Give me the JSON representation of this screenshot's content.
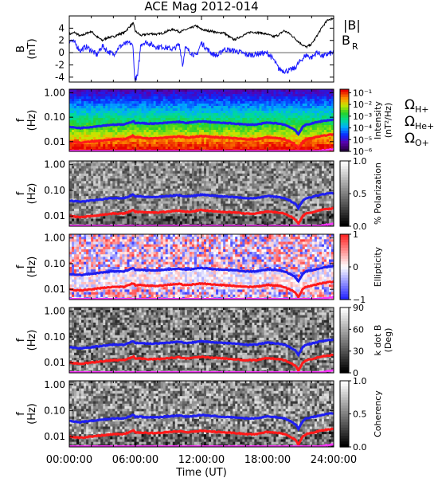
{
  "title": "ACE Mag 2012-014",
  "x_axis": {
    "label": "Time (UT)",
    "tick_labels": [
      "00:00:00",
      "06:00:00",
      "12:00:00",
      "18:00:00",
      "24:00:00"
    ],
    "range_hours": [
      0,
      24
    ]
  },
  "colors": {
    "B_total": "#000000",
    "B_R": "#1f1fff",
    "H_plus": "#1e1ef0",
    "He_plus": "#ff1a1a",
    "O_plus": "#ff33ff"
  },
  "chart_data": [
    {
      "type": "line",
      "panel": "field",
      "ylabel_line1": "B",
      "ylabel_line2": "(nT)",
      "ylim": [
        -4.8,
        6
      ],
      "y_ticks": [
        -4,
        -2,
        0,
        2,
        4
      ],
      "y_tick_labels": [
        "-4",
        "-2",
        "0",
        "2",
        "4"
      ],
      "series": [
        {
          "name": "|B|",
          "x": [
            0,
            0.5,
            1,
            1.5,
            2,
            2.5,
            3,
            3.5,
            4,
            4.5,
            5,
            5.5,
            5.8,
            6,
            6.5,
            7,
            7.5,
            8,
            8.5,
            9,
            9.5,
            10,
            10.5,
            11,
            11.5,
            12,
            12.5,
            13,
            13.5,
            14,
            14.5,
            15,
            15.5,
            16,
            16.5,
            17,
            17.5,
            18,
            18.5,
            19,
            19.5,
            20,
            20.5,
            21,
            21.5,
            22,
            22.5,
            23,
            23.5,
            24
          ],
          "y": [
            3.0,
            3.3,
            2.7,
            3.1,
            3.5,
            2.6,
            2.0,
            2.5,
            2.6,
            3.0,
            3.3,
            4.3,
            4.8,
            3.5,
            2.8,
            3.0,
            3.1,
            3.0,
            3.2,
            3.6,
            3.8,
            3.4,
            3.7,
            4.0,
            4.4,
            3.8,
            3.6,
            3.5,
            3.2,
            3.3,
            2.6,
            2.1,
            2.6,
            3.0,
            3.4,
            3.3,
            3.2,
            3.0,
            2.6,
            2.9,
            3.6,
            3.1,
            2.3,
            1.5,
            0.9,
            1.4,
            2.8,
            4.3,
            5.4,
            5.6
          ]
        },
        {
          "name": "B",
          "name_subscript": "R",
          "x": [
            0,
            0.5,
            1,
            1.5,
            2,
            2.5,
            3,
            3.5,
            4,
            4.5,
            5,
            5.5,
            5.8,
            5.9,
            6,
            6.2,
            6.5,
            7,
            7.5,
            8,
            8.5,
            9,
            9.5,
            10,
            10.3,
            10.5,
            11,
            11.5,
            12,
            12.5,
            13,
            13.5,
            14,
            14.5,
            15,
            15.5,
            16,
            16.5,
            17,
            17.5,
            18,
            18.5,
            19,
            19.5,
            20,
            20.5,
            21,
            21.5,
            22,
            22.5,
            23,
            23.5,
            24
          ],
          "y": [
            2.1,
            1.6,
            0.3,
            1.0,
            0.4,
            -0.4,
            1.1,
            0.2,
            -0.3,
            0.9,
            1.4,
            1.6,
            1.0,
            -3.5,
            -4.3,
            -3.8,
            1.5,
            1.7,
            1.3,
            0.9,
            1.0,
            0.7,
            0.6,
            1.4,
            -2.2,
            0.8,
            0.1,
            -0.6,
            1.6,
            0.6,
            -0.2,
            -0.5,
            0.6,
            0.4,
            0.3,
            0.1,
            -0.3,
            -0.4,
            -0.2,
            -0.1,
            -0.1,
            -1.0,
            -2.6,
            -3.0,
            -2.9,
            -2.5,
            -1.3,
            -0.4,
            -0.8,
            0.1,
            -0.6,
            -0.2,
            0.0
          ]
        }
      ]
    },
    {
      "type": "heatmap",
      "panel": "intensity",
      "ylabel_line1": "f",
      "ylabel_line2": "(Hz)",
      "y_scale": "log",
      "ylim": [
        0.004,
        1.4
      ],
      "y_ticks": [
        1,
        0.1,
        0.01
      ],
      "y_tick_labels": [
        "1.00",
        "0.10",
        "0.01"
      ],
      "colorbar": {
        "label_line1": "Intensity",
        "label_line2": "(nT²/Hz)",
        "scale": "log",
        "range": [
          1e-06,
          0.2
        ],
        "tick_values": [
          0.1,
          0.01,
          0.001,
          0.0001,
          1e-05,
          1e-06
        ],
        "tick_labels": [
          "10⁻¹",
          "10⁻²",
          "10⁻³",
          "10⁻⁴",
          "10⁻⁵",
          "10⁻⁶"
        ]
      }
    },
    {
      "type": "heatmap",
      "panel": "polarization",
      "ylabel_line1": "f",
      "ylabel_line2": "(Hz)",
      "y_scale": "log",
      "ylim": [
        0.004,
        1.4
      ],
      "y_ticks": [
        1,
        0.1,
        0.01
      ],
      "y_tick_labels": [
        "1.00",
        "0.10",
        "0.01"
      ],
      "colorbar": {
        "label_line1": "% Polarization",
        "label_line2": "",
        "scale": "linear",
        "range": [
          0,
          1
        ],
        "tick_values": [
          1,
          0.5,
          0
        ],
        "tick_labels": [
          "1.0",
          "0.5",
          "0.0"
        ]
      }
    },
    {
      "type": "heatmap",
      "panel": "ellipticity",
      "ylabel_line1": "f",
      "ylabel_line2": "(Hz)",
      "y_scale": "log",
      "ylim": [
        0.004,
        1.4
      ],
      "y_ticks": [
        1,
        0.1,
        0.01
      ],
      "y_tick_labels": [
        "1.00",
        "0.10",
        "0.01"
      ],
      "colorbar": {
        "label_line1": "Ellipticity",
        "label_line2": "",
        "scale": "linear",
        "range": [
          -1,
          1
        ],
        "tick_values": [
          1,
          0,
          -1
        ],
        "tick_labels": [
          "1",
          "0",
          "−1"
        ]
      }
    },
    {
      "type": "heatmap",
      "panel": "k_dot_b",
      "ylabel_line1": "f",
      "ylabel_line2": "(Hz)",
      "y_scale": "log",
      "ylim": [
        0.004,
        1.4
      ],
      "y_ticks": [
        1,
        0.1,
        0.01
      ],
      "y_tick_labels": [
        "1.00",
        "0.10",
        "0.01"
      ],
      "colorbar": {
        "label_line1": "k dot B",
        "label_line2": "(Deg)",
        "scale": "linear",
        "range": [
          0,
          90
        ],
        "tick_values": [
          90,
          60,
          30,
          0
        ],
        "tick_labels": [
          "90",
          "60",
          "30",
          "0"
        ]
      }
    },
    {
      "type": "heatmap",
      "panel": "coherency",
      "ylabel_line1": "f",
      "ylabel_line2": "(Hz)",
      "y_scale": "log",
      "ylim": [
        0.004,
        1.4
      ],
      "y_ticks": [
        1,
        0.1,
        0.01
      ],
      "y_tick_labels": [
        "1.00",
        "0.10",
        "0.01"
      ],
      "colorbar": {
        "label_line1": "Coherency",
        "label_line2": "",
        "scale": "linear",
        "range": [
          0,
          1
        ],
        "tick_values": [
          1,
          0.5,
          0
        ],
        "tick_labels": [
          "1.0",
          "0.5",
          "0.0"
        ]
      }
    }
  ],
  "gyrofrequency_legend": [
    {
      "symbol": "Ω",
      "sub": "H+",
      "color": "#1e1ef0"
    },
    {
      "symbol": "Ω",
      "sub": "He+",
      "color": "#ff1a1a"
    },
    {
      "symbol": "Ω",
      "sub": "O+",
      "color": "#ff33ff"
    }
  ],
  "gyrofrequency_hz": {
    "x": [
      0,
      1,
      2,
      3,
      4,
      5,
      5.5,
      5.8,
      6,
      6.5,
      7,
      8,
      9,
      10,
      10.5,
      11,
      12,
      13,
      14,
      15,
      16,
      17,
      18,
      19,
      19.5,
      20,
      20.5,
      20.8,
      21,
      21.2,
      21.5,
      22,
      23,
      24
    ],
    "H_plus": [
      0.04,
      0.036,
      0.04,
      0.045,
      0.05,
      0.05,
      0.06,
      0.07,
      0.058,
      0.058,
      0.055,
      0.055,
      0.06,
      0.065,
      0.058,
      0.06,
      0.068,
      0.062,
      0.058,
      0.055,
      0.05,
      0.05,
      0.06,
      0.055,
      0.05,
      0.04,
      0.03,
      0.02,
      0.028,
      0.04,
      0.05,
      0.055,
      0.07,
      0.08
    ]
  }
}
